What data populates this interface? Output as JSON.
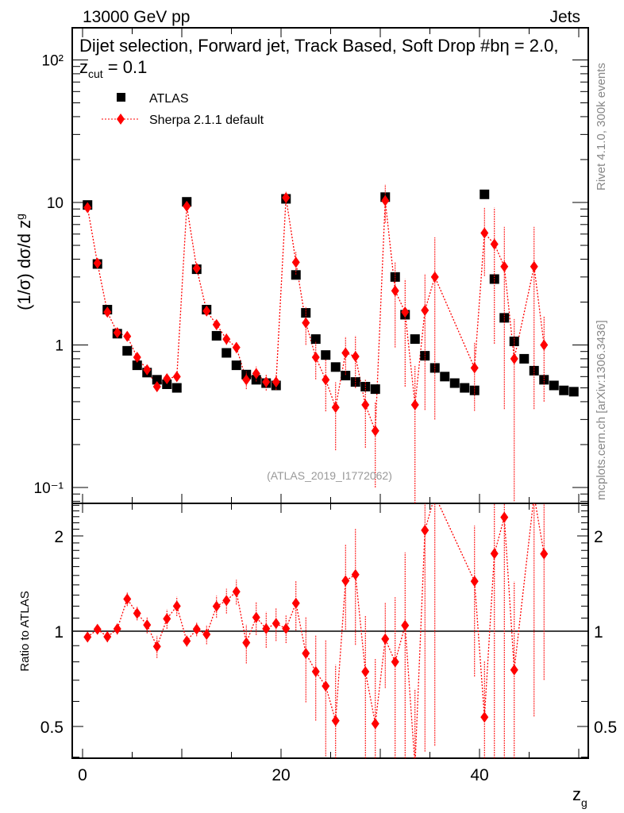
{
  "header": {
    "left": "13000 GeV pp",
    "right": "Jets"
  },
  "side_labels": {
    "rivet": "Rivet 4.1.0,  300k events",
    "mcplots": "mcplots.cern.ch [arXiv:1306.3436]"
  },
  "watermark": "(ATLAS_2019_I1772062)",
  "chart_data": {
    "type": "scatter",
    "title": "Dijet selection, Forward jet, Track Based, Soft Drop #b",
    "title_suffix": "η = 2.0, z",
    "title_sub": "cut",
    "title_end": " = 0.1",
    "xlabel": "z",
    "xlabel_sub": "g",
    "ylabel": "(1/σ) dσ/d z",
    "ylabel_sub": "g",
    "ratio_ylabel": "Ratio to ATLAS",
    "xlim": [
      -0.5,
      51
    ],
    "ylim": [
      0.078,
      168
    ],
    "yscale": "log",
    "ratio_ylim": [
      0.4,
      2.52
    ],
    "x_tick_labels": [
      "0",
      "20",
      "40"
    ],
    "y_tick_labels": [
      "10⁻¹",
      "1",
      "10",
      "10²"
    ],
    "ratio_tick_labels": [
      "0.5",
      "1",
      "2"
    ],
    "legend": [
      "ATLAS",
      "Sherpa 2.1.1 default"
    ],
    "legend_position": "top-left",
    "colors": {
      "data": "#000000",
      "mc": "#ff0000"
    },
    "x": [
      0.5,
      1.5,
      2.5,
      3.5,
      4.5,
      5.5,
      6.5,
      7.5,
      8.5,
      9.5,
      10.5,
      11.5,
      12.5,
      13.5,
      14.5,
      15.5,
      16.5,
      17.5,
      18.5,
      19.5,
      20.5,
      21.5,
      22.5,
      23.5,
      24.5,
      25.5,
      26.5,
      27.5,
      28.5,
      29.5,
      30.5,
      31.5,
      32.5,
      33.5,
      34.5,
      35.5,
      36.5,
      37.5,
      38.5,
      39.5,
      40.5,
      41.5,
      42.5,
      43.5,
      44.5,
      45.5,
      46.5,
      47.5,
      48.5,
      49.5
    ],
    "series": [
      {
        "name": "ATLAS",
        "values": [
          9.6,
          3.7,
          1.77,
          1.2,
          0.91,
          0.72,
          0.64,
          0.57,
          0.53,
          0.5,
          10.1,
          3.4,
          1.77,
          1.16,
          0.88,
          0.72,
          0.62,
          0.57,
          0.54,
          0.52,
          10.6,
          3.1,
          1.68,
          1.1,
          0.85,
          0.7,
          0.61,
          0.55,
          0.51,
          0.49,
          10.9,
          3.0,
          1.63,
          1.1,
          0.84,
          0.69,
          0.6,
          0.54,
          0.5,
          0.48,
          11.4,
          2.9,
          1.55,
          1.06,
          0.8,
          0.66,
          0.57,
          0.52,
          0.48,
          0.47
        ]
      },
      {
        "name": "Sherpa 2.1.1 default",
        "values": [
          9.2,
          3.75,
          1.7,
          1.22,
          1.15,
          0.82,
          0.67,
          0.51,
          0.58,
          0.6,
          9.4,
          3.45,
          1.73,
          1.39,
          1.1,
          0.96,
          0.57,
          0.63,
          0.55,
          0.55,
          10.8,
          3.8,
          1.43,
          0.82,
          0.57,
          0.365,
          0.88,
          0.83,
          0.38,
          0.25,
          10.3,
          2.4,
          1.7,
          0.38,
          1.75,
          3.0,
          null,
          null,
          null,
          0.69,
          6.1,
          5.1,
          3.55,
          0.8,
          null,
          3.55,
          1.0,
          null,
          null,
          null
        ],
        "rel_errors": [
          0.03,
          0.03,
          0.04,
          0.04,
          0.05,
          0.05,
          0.06,
          0.08,
          0.07,
          0.07,
          0.04,
          0.05,
          0.07,
          0.08,
          0.09,
          0.09,
          0.14,
          0.12,
          0.13,
          0.12,
          0.1,
          0.18,
          0.3,
          0.3,
          0.4,
          0.5,
          0.3,
          0.4,
          0.5,
          0.6,
          0.3,
          0.6,
          0.7,
          0.9,
          0.8,
          0.9,
          null,
          null,
          null,
          0.5,
          0.5,
          0.8,
          0.9,
          0.9,
          null,
          0.9,
          0.6,
          null,
          null,
          null
        ]
      }
    ]
  }
}
